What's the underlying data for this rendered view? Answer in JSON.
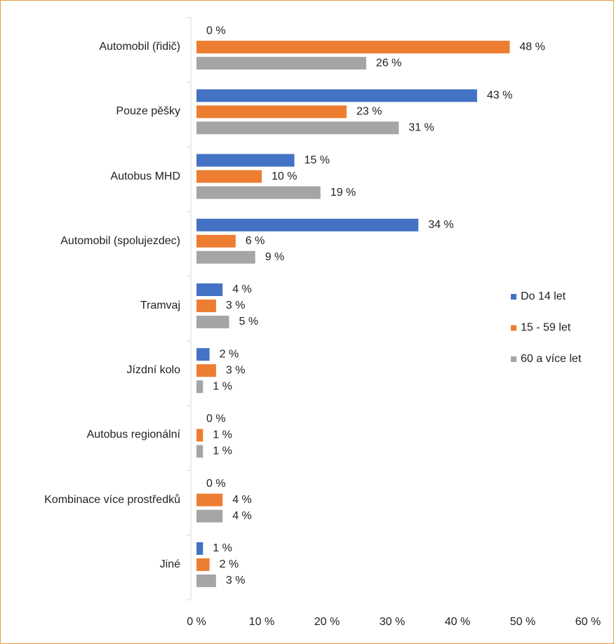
{
  "chart_data": {
    "type": "hbar",
    "categories": [
      "Automobil (řidič)",
      "Pouze pěšky",
      "Autobus MHD",
      "Automobil (spolujezdec)",
      "Tramvaj",
      "Jízdní kolo",
      "Autobus regionální",
      "Kombinace více prostředků",
      "Jiné"
    ],
    "series": [
      {
        "name": "Do 14 let",
        "color": "#4472c4",
        "values": [
          0,
          43,
          15,
          34,
          4,
          2,
          0,
          0,
          1
        ],
        "value_labels": [
          "0 %",
          "43 %",
          "15 %",
          "34 %",
          "4 %",
          "2 %",
          "0 %",
          "0 %",
          "1 %"
        ]
      },
      {
        "name": "15 - 59 let",
        "color": "#ed7d31",
        "values": [
          48,
          23,
          10,
          6,
          3,
          3,
          1,
          4,
          2
        ],
        "value_labels": [
          "48 %",
          "23 %",
          "10 %",
          "6 %",
          "3 %",
          "3 %",
          "1 %",
          "4 %",
          "2 %"
        ]
      },
      {
        "name": "60 a více let",
        "color": "#a5a5a5",
        "values": [
          26,
          31,
          19,
          9,
          5,
          1,
          1,
          4,
          3
        ],
        "value_labels": [
          "26 %",
          "31 %",
          "19 %",
          "9 %",
          "5 %",
          "1 %",
          "1 %",
          "4 %",
          "3 %"
        ]
      }
    ],
    "xlim": [
      0,
      60
    ],
    "xticks": [
      {
        "value": 0,
        "label": "0 %"
      },
      {
        "value": 10,
        "label": "10 %"
      },
      {
        "value": 20,
        "label": "20 %"
      },
      {
        "value": 30,
        "label": "30 %"
      },
      {
        "value": 40,
        "label": "40 %"
      },
      {
        "value": 50,
        "label": "50 %"
      },
      {
        "value": 60,
        "label": "60 %"
      }
    ],
    "legend": "right"
  }
}
